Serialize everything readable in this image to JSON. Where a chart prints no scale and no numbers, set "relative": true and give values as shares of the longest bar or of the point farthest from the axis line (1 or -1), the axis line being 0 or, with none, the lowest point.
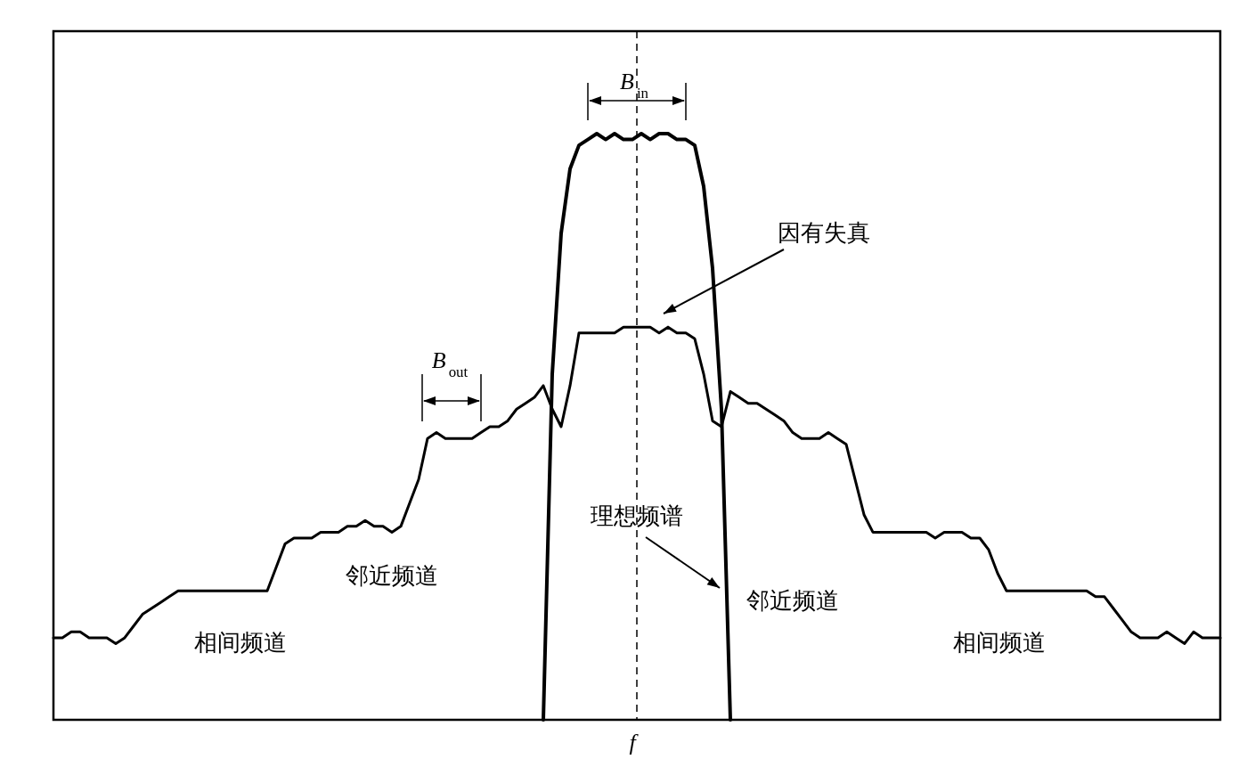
{
  "chart_data": {
    "type": "line",
    "relative": true,
    "xlabel": "f",
    "categories": [
      null,
      null,
      null,
      null,
      null,
      null,
      null,
      null,
      null,
      null,
      null,
      null,
      null,
      null,
      null,
      null,
      null,
      null,
      null,
      null,
      null,
      null,
      null,
      null,
      null,
      null,
      null,
      null,
      null,
      null,
      null,
      null,
      null,
      null,
      null,
      null,
      null,
      null,
      null,
      null,
      null,
      null,
      null,
      null,
      null,
      null,
      null,
      null,
      null,
      null,
      null,
      null,
      null,
      null,
      null,
      null,
      null,
      null,
      null,
      null,
      null,
      null,
      null,
      null,
      null,
      null,
      null,
      null,
      null,
      null,
      null,
      null,
      null,
      null,
      null,
      null,
      null,
      null,
      null,
      null,
      null,
      null,
      null,
      null,
      null,
      null,
      null,
      null,
      null,
      null,
      null,
      null,
      null,
      null,
      null,
      null,
      null,
      null,
      null,
      null,
      null,
      null,
      null,
      null,
      null,
      null,
      null,
      null,
      null,
      null,
      null,
      null,
      null,
      null,
      null,
      null,
      null,
      null,
      null,
      null,
      null,
      null,
      null,
      null,
      null,
      null,
      null,
      null,
      null,
      null,
      null,
      null
    ],
    "series": [
      {
        "color": "#000000",
        "values": [
          0.14,
          0.14,
          0.15,
          0.15,
          0.14,
          0.14,
          0.14,
          0.13,
          0.14,
          0.16,
          0.18,
          0.19,
          0.2,
          0.21,
          0.22,
          0.22,
          0.22,
          0.22,
          0.22,
          0.22,
          0.22,
          0.22,
          0.22,
          0.22,
          0.22,
          0.26,
          0.3,
          0.31,
          0.31,
          0.31,
          0.32,
          0.32,
          0.32,
          0.33,
          0.33,
          0.34,
          0.33,
          0.33,
          0.32,
          0.33,
          0.37,
          0.41,
          0.48,
          0.49,
          0.48,
          0.48,
          0.48,
          0.48,
          0.49,
          0.5,
          0.5,
          0.51,
          0.53,
          0.54,
          0.55,
          0.57,
          0.53,
          0.5,
          0.57,
          0.66,
          0.66,
          0.66,
          0.66,
          0.66,
          0.67,
          0.67,
          0.67,
          0.67,
          0.66,
          0.67,
          0.66,
          0.66,
          0.65,
          0.59,
          0.51,
          0.5,
          0.56,
          0.55,
          0.54,
          0.54,
          0.53,
          0.52,
          0.51,
          0.49,
          0.48,
          0.48,
          0.48,
          0.49,
          0.48,
          0.47,
          0.41,
          0.35,
          0.32,
          0.32,
          0.32,
          0.32,
          0.32,
          0.32,
          0.32,
          0.31,
          0.32,
          0.32,
          0.32,
          0.31,
          0.31,
          0.29,
          0.25,
          0.22,
          0.22,
          0.22,
          0.22,
          0.22,
          0.22,
          0.22,
          0.22,
          0.22,
          0.22,
          0.21,
          0.21,
          0.19,
          0.17,
          0.15,
          0.14,
          0.14,
          0.14,
          0.15,
          0.14,
          0.13,
          0.15,
          0.14,
          0.14,
          0.14
        ]
      },
      {
        "color": "#000000",
        "values": [
          null,
          null,
          null,
          null,
          null,
          null,
          null,
          null,
          null,
          null,
          null,
          null,
          null,
          null,
          null,
          null,
          null,
          null,
          null,
          null,
          null,
          null,
          null,
          null,
          null,
          null,
          null,
          null,
          null,
          null,
          null,
          null,
          null,
          null,
          null,
          null,
          null,
          null,
          null,
          null,
          null,
          null,
          null,
          null,
          null,
          null,
          null,
          null,
          null,
          null,
          null,
          null,
          null,
          null,
          null,
          0,
          0.59,
          0.83,
          0.94,
          0.98,
          0.99,
          1,
          0.99,
          1,
          0.99,
          0.99,
          1,
          0.99,
          1,
          1,
          0.99,
          0.99,
          0.98,
          0.91,
          0.77,
          0.53,
          0,
          null,
          null,
          null,
          null,
          null,
          null,
          null,
          null,
          null,
          null,
          null,
          null,
          null,
          null,
          null,
          null,
          null,
          null,
          null,
          null,
          null,
          null,
          null,
          null,
          null,
          null,
          null,
          null,
          null,
          null,
          null,
          null,
          null,
          null,
          null,
          null,
          null,
          null,
          null,
          null,
          null,
          null,
          null,
          null,
          null,
          null,
          null,
          null,
          null,
          null,
          null,
          null,
          null,
          null,
          null
        ]
      }
    ],
    "annotations": [
      "B$_{in}$",
      "B$_{out}$",
      "因有失真",
      "理想频谱",
      "邻近频道",
      "邻近频道",
      "相间频道",
      "相间频道"
    ]
  }
}
